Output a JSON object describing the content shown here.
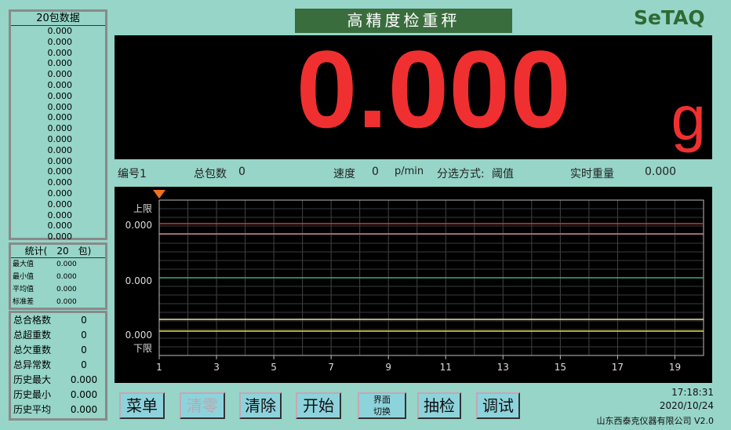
{
  "app_title": "高精度检重秤",
  "logo": "SeTAQ",
  "recent": {
    "header": "20包数据",
    "values": [
      "0.000",
      "0.000",
      "0.000",
      "0.000",
      "0.000",
      "0.000",
      "0.000",
      "0.000",
      "0.000",
      "0.000",
      "0.000",
      "0.000",
      "0.000",
      "0.000",
      "0.000",
      "0.000",
      "0.000",
      "0.000",
      "0.000",
      "0.000"
    ]
  },
  "stats": {
    "header": "统计(　20　包)",
    "rows": [
      {
        "label": "最大值",
        "value": "0.000"
      },
      {
        "label": "最小值",
        "value": "0.000"
      },
      {
        "label": "平均值",
        "value": "0.000"
      },
      {
        "label": "标准差",
        "value": "0.000"
      }
    ]
  },
  "totals": [
    {
      "label": "总合格数",
      "value": "0"
    },
    {
      "label": "总超重数",
      "value": "0"
    },
    {
      "label": "总欠重数",
      "value": "0"
    },
    {
      "label": "总异常数",
      "value": "0"
    },
    {
      "label": "历史最大",
      "value": "0.000"
    },
    {
      "label": "历史最小",
      "value": "0.000"
    },
    {
      "label": "历史平均",
      "value": "0.000"
    }
  ],
  "display": {
    "weight": "0.000",
    "unit": "g"
  },
  "info": {
    "id": "编号1",
    "total_label": "总包数",
    "total": "0",
    "speed_label": "速度",
    "speed": "0",
    "speed_unit": "p/min",
    "mode_label": "分选方式:",
    "mode": "阈值",
    "realtime_label": "实时重量",
    "realtime": "0.000"
  },
  "chart_data": {
    "type": "line",
    "x_ticks": [
      "1",
      "3",
      "5",
      "7",
      "9",
      "11",
      "13",
      "15",
      "17",
      "19"
    ],
    "xlim": [
      1,
      20
    ],
    "upper_label": "上限",
    "lower_label": "下限",
    "y_labels": [
      "0.000",
      "0.000",
      "0.000"
    ],
    "grid": true,
    "lines": [
      {
        "color": "#c0404a"
      },
      {
        "color": "#c08090"
      },
      {
        "color": "#3fa890"
      },
      {
        "color": "#e8e8a0"
      },
      {
        "color": "#e0e040"
      }
    ]
  },
  "buttons": [
    {
      "label": "菜单"
    },
    {
      "label": "清零",
      "disabled": true
    },
    {
      "label": "清除"
    },
    {
      "label": "开始"
    },
    {
      "label1": "界面",
      "label2": "切换"
    },
    {
      "label": "抽检"
    },
    {
      "label": "调试"
    }
  ],
  "footer": {
    "time": "17:18:31",
    "date": "2020/10/24",
    "company": "山东西泰克仪器有限公司 V2.0"
  }
}
